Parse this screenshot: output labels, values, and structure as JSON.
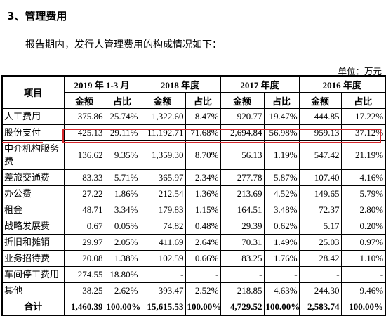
{
  "heading": "3、管理费用",
  "intro": "报告期内，发行人管理费用的构成情况如下：",
  "unit": "单位：万元",
  "table": {
    "item_header": "项目",
    "periods": [
      "2019 年 1-3 月",
      "2018 年度",
      "2017 年度",
      "2016 年度"
    ],
    "sub_amount": "金额",
    "sub_ratio": "占比",
    "rows": [
      {
        "label": "人工费用",
        "vals": [
          "375.86",
          "25.74%",
          "1,322.60",
          "8.47%",
          "920.77",
          "19.47%",
          "444.85",
          "17.22%"
        ]
      },
      {
        "label": "股份支付",
        "vals": [
          "425.13",
          "29.11%",
          "11,192.71",
          "71.68%",
          "2,694.84",
          "56.98%",
          "959.13",
          "37.12%"
        ]
      },
      {
        "label": "中介机构服务费",
        "vals": [
          "136.62",
          "9.35%",
          "1,359.30",
          "8.70%",
          "56.13",
          "1.19%",
          "547.42",
          "21.19%"
        ]
      },
      {
        "label": "差旅交通费",
        "vals": [
          "83.33",
          "5.71%",
          "365.97",
          "2.34%",
          "277.78",
          "5.87%",
          "107.40",
          "4.16%"
        ]
      },
      {
        "label": "办公费",
        "vals": [
          "27.22",
          "1.86%",
          "212.54",
          "1.36%",
          "213.69",
          "4.52%",
          "149.65",
          "5.79%"
        ]
      },
      {
        "label": "租金",
        "vals": [
          "48.71",
          "3.34%",
          "179.83",
          "1.15%",
          "164.51",
          "3.48%",
          "72.37",
          "2.80%"
        ]
      },
      {
        "label": "战略发展费",
        "vals": [
          "0.67",
          "0.05%",
          "74.82",
          "0.48%",
          "29.39",
          "0.62%",
          "5.17",
          "0.20%"
        ]
      },
      {
        "label": "折旧和摊销",
        "vals": [
          "29.97",
          "2.05%",
          "411.69",
          "2.64%",
          "70.31",
          "1.49%",
          "25.03",
          "0.97%"
        ]
      },
      {
        "label": "业务招待费",
        "vals": [
          "20.08",
          "1.38%",
          "102.59",
          "0.66%",
          "83.25",
          "1.76%",
          "28.42",
          "1.10%"
        ]
      },
      {
        "label": "车间停工费用",
        "vals": [
          "274.55",
          "18.80%",
          "-",
          "-",
          "-",
          "-",
          "-",
          "-"
        ]
      },
      {
        "label": "其他",
        "vals": [
          "38.25",
          "2.62%",
          "393.47",
          "2.52%",
          "218.85",
          "4.63%",
          "244.30",
          "9.46%"
        ]
      }
    ],
    "total": {
      "label": "合计",
      "vals": [
        "1,460.39",
        "100.00%",
        "15,615.53",
        "100.00%",
        "4,729.52",
        "100.00%",
        "2,583.74",
        "100.00%"
      ]
    }
  },
  "colors": {
    "highlight": "#d6262b"
  }
}
